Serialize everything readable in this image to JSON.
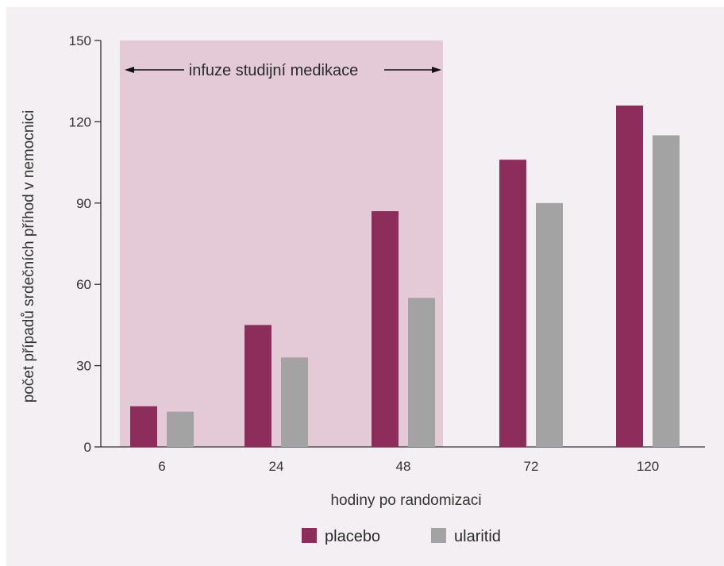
{
  "chart_data": {
    "type": "bar",
    "categories": [
      "6",
      "24",
      "48",
      "72",
      "120"
    ],
    "series": [
      {
        "name": "placebo",
        "values": [
          15,
          45,
          87,
          106,
          126
        ],
        "color": "#8c2d5c"
      },
      {
        "name": "ularitid",
        "values": [
          13,
          33,
          55,
          90,
          115
        ],
        "color": "#a3a3a3"
      }
    ],
    "xlabel": "hodiny po randomizaci",
    "ylabel": "počet případů srdečních příhod v nemocnici",
    "ylim": [
      0,
      150
    ],
    "yticks": [
      0,
      30,
      60,
      90,
      120,
      150
    ],
    "grid": false,
    "legend_position": "bottom-center",
    "shaded_region": {
      "label": "infuze studijní medikace",
      "from_category": "6",
      "to_category": "48",
      "color": "#e4c9d6"
    }
  }
}
